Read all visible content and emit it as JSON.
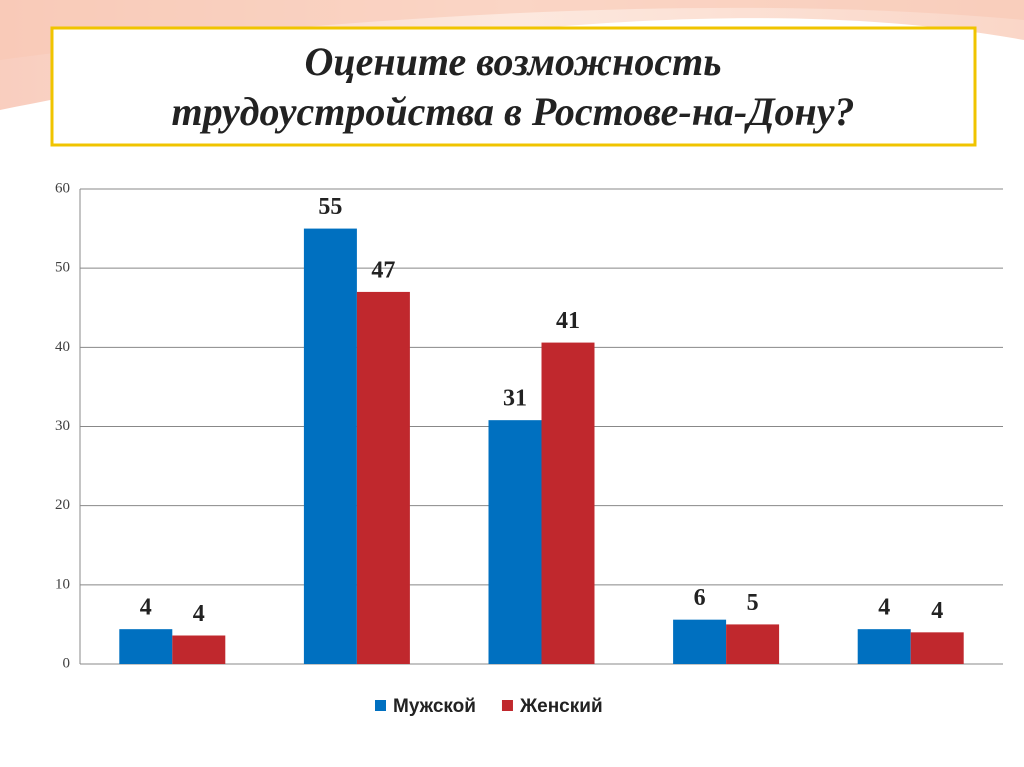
{
  "chart_data": {
    "type": "bar",
    "title": [
      "Оцените возможность",
      "трудоустройства в Ростове-на-Дону?"
    ],
    "categories": [
      null,
      null,
      null,
      null,
      null
    ],
    "series": [
      {
        "name": "Мужской",
        "color": "#0070c0",
        "values": [
          4.4,
          55,
          30.8,
          5.6,
          4.4
        ],
        "value_labels": [
          "4",
          "55",
          "31",
          "6",
          "4"
        ]
      },
      {
        "name": "Женский",
        "color": "#c0282d",
        "values": [
          3.6,
          47,
          40.6,
          5,
          4
        ],
        "value_labels": [
          "4",
          "47",
          "41",
          "5",
          "4"
        ]
      }
    ],
    "ylim": [
      0,
      60
    ],
    "yticks": [
      0,
      10,
      20,
      30,
      40,
      50,
      60
    ],
    "grid": true,
    "legend": "bottom"
  }
}
